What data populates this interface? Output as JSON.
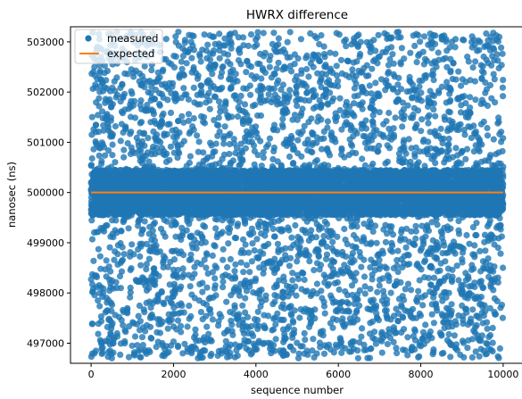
{
  "chart_data": {
    "type": "scatter",
    "title": "HWRX difference",
    "xlabel": "sequence number",
    "ylabel": "nanosec (ns)",
    "xlim": [
      -500,
      10500
    ],
    "ylim": [
      496600,
      503300
    ],
    "x_ticks": [
      0,
      2000,
      4000,
      6000,
      8000,
      10000
    ],
    "x_tick_labels": [
      "0",
      "2000",
      "4000",
      "6000",
      "8000",
      "10000"
    ],
    "y_ticks": [
      497000,
      498000,
      499000,
      500000,
      501000,
      502000,
      503000
    ],
    "y_tick_labels": [
      "497000",
      "498000",
      "499000",
      "500000",
      "501000",
      "502000",
      "503000"
    ],
    "legend_position": "upper-left",
    "grid": false,
    "series": [
      {
        "name": "measured",
        "kind": "scatter",
        "color": "#1f77b4",
        "x_range": [
          0,
          10000
        ],
        "count": 10000,
        "center": 500000,
        "core_halfwidth": 450,
        "full_range": [
          496700,
          503200
        ],
        "distribution": "dense band 499550–500450 with sparse noise over the full range"
      },
      {
        "name": "expected",
        "kind": "line",
        "color": "#ff7f0e",
        "x": [
          0,
          10000
        ],
        "y": [
          500000,
          500000
        ]
      }
    ]
  }
}
